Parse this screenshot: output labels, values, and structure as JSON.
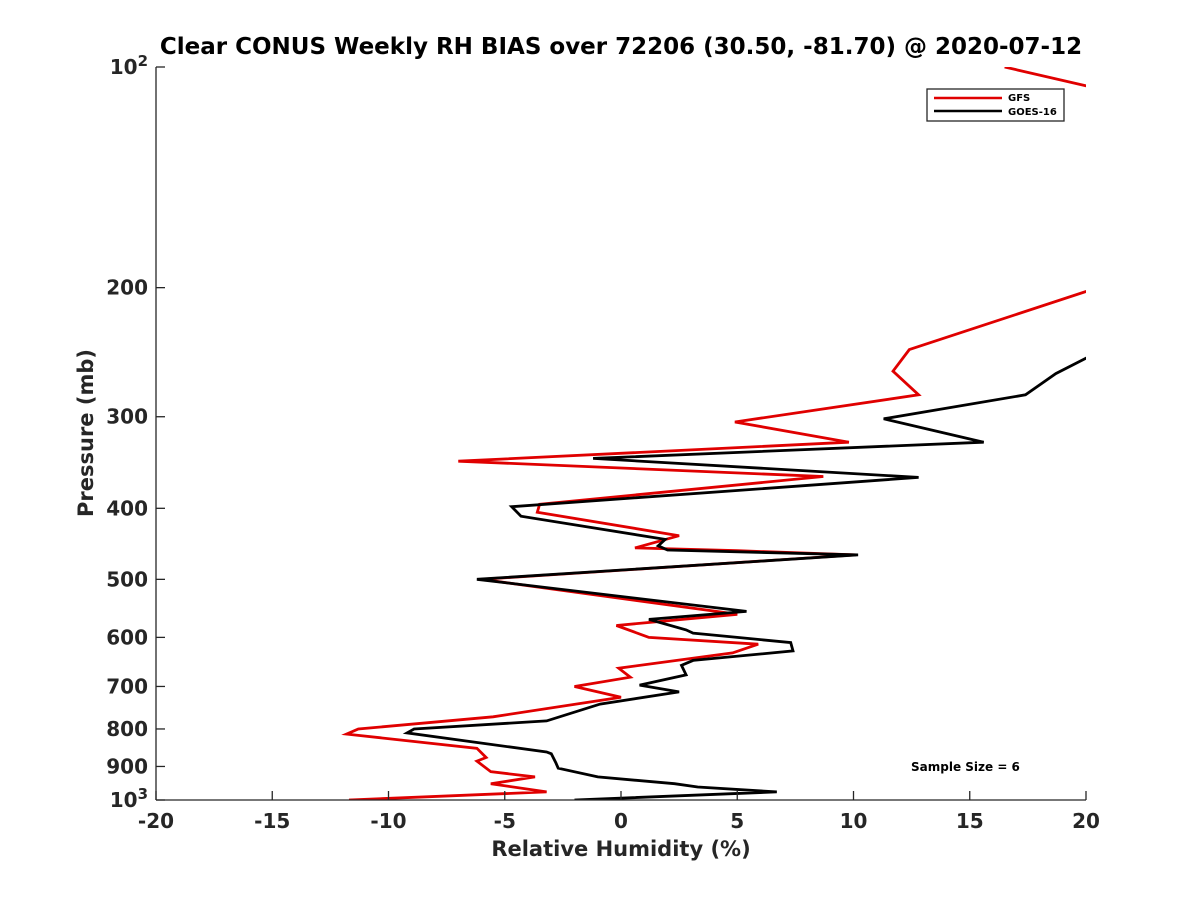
{
  "chart_data": {
    "type": "line",
    "title": "Clear CONUS Weekly RH BIAS over 72206 (30.50, -81.70) @ 2020-07-12",
    "xlabel": "Relative Humidity (%)",
    "ylabel": "Pressure (mb)",
    "xlim": [
      -20,
      20
    ],
    "ylim": [
      100,
      1000
    ],
    "y_scale": "log",
    "y_reversed": true,
    "x_ticks": [
      -20,
      -15,
      -10,
      -5,
      0,
      5,
      10,
      15,
      20
    ],
    "x_tick_labels": [
      "-20",
      "-15",
      "-10",
      "-5",
      "0",
      "5",
      "10",
      "15",
      "20"
    ],
    "y_ticks": [
      100,
      200,
      300,
      400,
      500,
      600,
      700,
      800,
      900,
      1000
    ],
    "y_tick_labels": [
      {
        "base": "10",
        "exp": "2"
      },
      {
        "base": "200",
        "exp": ""
      },
      {
        "base": "300",
        "exp": ""
      },
      {
        "base": "400",
        "exp": ""
      },
      {
        "base": "500",
        "exp": ""
      },
      {
        "base": "600",
        "exp": ""
      },
      {
        "base": "700",
        "exp": ""
      },
      {
        "base": "800",
        "exp": ""
      },
      {
        "base": "900",
        "exp": ""
      },
      {
        "base": "10",
        "exp": "3"
      }
    ],
    "grid": false,
    "legend_position": "top-right",
    "annotation": "Sample Size = 6",
    "series": [
      {
        "name": "GFS",
        "color": "#e00000",
        "x": [
          16.5,
          20.5,
          20.5,
          12.4,
          11.7,
          12.8,
          4.9,
          9.8,
          -7.0,
          8.7,
          -3.5,
          -3.6,
          2.5,
          0.6,
          5.0,
          10.1,
          -6.0,
          5.0,
          -0.2,
          1.2,
          5.9,
          4.8,
          -0.1,
          0.4,
          -2.0,
          0.0,
          -5.5,
          -11.3,
          -11.8,
          -6.2,
          -5.8,
          -6.2,
          -5.6,
          -3.7,
          -5.6,
          -3.2,
          -11.7
        ],
        "y": [
          100,
          107,
          200,
          243,
          260,
          280,
          305,
          325,
          345,
          362,
          395,
          405,
          436,
          453,
          457,
          463,
          500,
          558,
          578,
          600,
          613,
          630,
          661,
          680,
          700,
          724,
          770,
          800,
          813,
          850,
          875,
          885,
          915,
          930,
          950,
          975,
          1000
        ]
      },
      {
        "name": "GOES-16",
        "color": "#000000",
        "x": [
          20.5,
          18.7,
          17.4,
          11.3,
          15.6,
          -1.2,
          12.8,
          -4.7,
          -4.3,
          1.9,
          1.6,
          2.0,
          10.2,
          -6.2,
          5.4,
          1.2,
          2.8,
          3.1,
          7.3,
          7.4,
          3.1,
          2.6,
          2.8,
          0.8,
          2.5,
          -0.9,
          -3.2,
          -8.9,
          -9.2,
          -3.2,
          -3.0,
          -2.8,
          -2.7,
          -1.0,
          2.3,
          3.3,
          6.7,
          -2.0
        ],
        "y": [
          245,
          262,
          280,
          302,
          325,
          342,
          363,
          398,
          410,
          441,
          450,
          456,
          463,
          500,
          553,
          567,
          586,
          592,
          610,
          626,
          645,
          655,
          675,
          697,
          712,
          740,
          780,
          800,
          810,
          860,
          865,
          890,
          905,
          930,
          950,
          960,
          975,
          1000
        ]
      }
    ]
  }
}
